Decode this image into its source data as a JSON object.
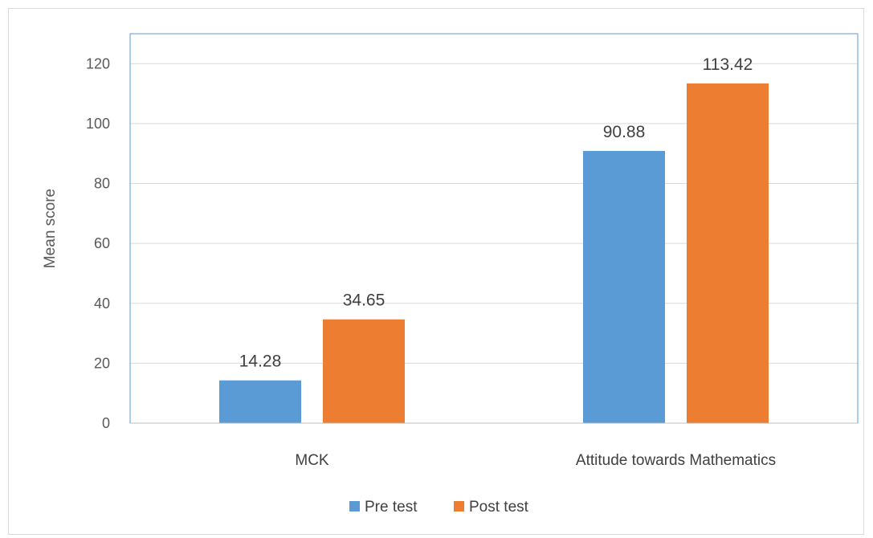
{
  "chart_data": {
    "type": "bar",
    "categories": [
      "MCK",
      "Attitude towards Mathematics"
    ],
    "series": [
      {
        "name": "Pre test",
        "color": "#5b9bd5",
        "values": [
          14.28,
          90.88
        ]
      },
      {
        "name": "Post test",
        "color": "#ed7d31",
        "values": [
          34.65,
          113.42
        ]
      }
    ],
    "ylabel": "Mean score",
    "ylim": [
      0,
      130
    ],
    "yticks": [
      0,
      20,
      40,
      60,
      80,
      100,
      120
    ],
    "data_labels": [
      [
        "14.28",
        "90.88"
      ],
      [
        "34.65",
        "113.42"
      ]
    ],
    "grid": true,
    "legend": "bottom-center",
    "plot_border_color": "#5b9bd5",
    "gridline_color": "#d9d9d9"
  }
}
